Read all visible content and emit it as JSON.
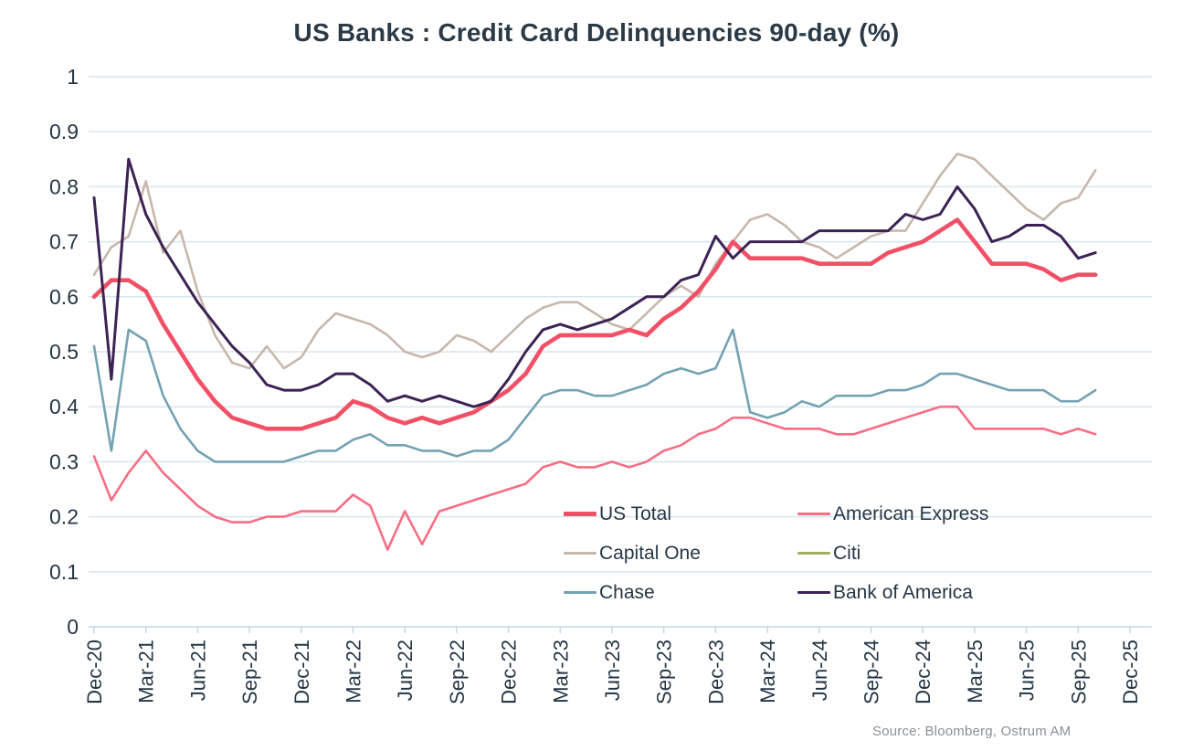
{
  "title": "US Banks : Credit Card Delinquencies 90-day (%)",
  "source": "Source: Bloomberg, Ostrum AM",
  "colors": {
    "title_text": "#2b3a47",
    "axis_text": "#263645",
    "gridline": "#d8e6ee",
    "axis_line": "#c2d8e4",
    "source_text": "#8b9095",
    "background": "#ffffff"
  },
  "chart_data": {
    "type": "line",
    "title": "US Banks : Credit Card Delinquencies 90-day (%)",
    "xlabel": "",
    "ylabel": "",
    "ylim": [
      0,
      1
    ],
    "grid": "horizontal",
    "legend_position": "inside bottom-right, 2 columns x 3 rows",
    "y_tick_labels": [
      "0",
      "0.1",
      "0.2",
      "0.3",
      "0.4",
      "0.5",
      "0.6",
      "0.7",
      "0.8",
      "0.9",
      "1"
    ],
    "x_tick_labels": [
      "Dec-20",
      "Mar-21",
      "Jun-21",
      "Sep-21",
      "Dec-21",
      "Mar-22",
      "Jun-22",
      "Sep-22",
      "Dec-22",
      "Mar-23",
      "Jun-23",
      "Sep-23",
      "Dec-23",
      "Mar-24",
      "Jun-24",
      "Sep-24",
      "Dec-24",
      "Mar-25",
      "Jun-25",
      "Sep-25",
      "Dec-25"
    ],
    "months": [
      "Dec-20",
      "Jan-21",
      "Feb-21",
      "Mar-21",
      "Apr-21",
      "May-21",
      "Jun-21",
      "Jul-21",
      "Aug-21",
      "Sep-21",
      "Oct-21",
      "Nov-21",
      "Dec-21",
      "Jan-22",
      "Feb-22",
      "Mar-22",
      "Apr-22",
      "May-22",
      "Jun-22",
      "Jul-22",
      "Aug-22",
      "Sep-22",
      "Oct-22",
      "Nov-22",
      "Dec-22",
      "Jan-23",
      "Feb-23",
      "Mar-23",
      "Apr-23",
      "May-23",
      "Jun-23",
      "Jul-23",
      "Aug-23",
      "Sep-23",
      "Oct-23",
      "Nov-23",
      "Dec-23",
      "Jan-24",
      "Feb-24",
      "Mar-24",
      "Apr-24",
      "May-24",
      "Jun-24",
      "Jul-24",
      "Aug-24",
      "Sep-24",
      "Oct-24",
      "Nov-24",
      "Dec-24",
      "Jan-25",
      "Feb-25",
      "Mar-25",
      "Apr-25",
      "May-25",
      "Jun-25",
      "Jul-25",
      "Aug-25",
      "Sep-25",
      "Oct-25"
    ],
    "draw_order": [
      "Capital One",
      "Citi",
      "Chase",
      "American Express",
      "US Total",
      "Bank of America"
    ],
    "legend_rows": [
      [
        "US Total",
        "American Express"
      ],
      [
        "Capital One",
        "Citi"
      ],
      [
        "Chase",
        "Bank of America"
      ]
    ],
    "series": [
      {
        "name": "US Total",
        "color": "#f25066",
        "stroke_width": 4.6,
        "values": [
          0.6,
          0.63,
          0.63,
          0.61,
          0.55,
          0.5,
          0.45,
          0.41,
          0.38,
          0.37,
          0.36,
          0.36,
          0.36,
          0.37,
          0.38,
          0.41,
          0.4,
          0.38,
          0.37,
          0.38,
          0.37,
          0.38,
          0.39,
          0.41,
          0.43,
          0.46,
          0.51,
          0.53,
          0.53,
          0.53,
          0.53,
          0.54,
          0.53,
          0.56,
          0.58,
          0.61,
          0.65,
          0.7,
          0.67,
          0.67,
          0.67,
          0.67,
          0.66,
          0.66,
          0.66,
          0.66,
          0.68,
          0.69,
          0.7,
          0.72,
          0.74,
          0.7,
          0.66,
          0.66,
          0.66,
          0.65,
          0.63,
          0.64,
          0.64
        ]
      },
      {
        "name": "American Express",
        "color": "#f76e84",
        "stroke_width": 2.6,
        "values": [
          0.31,
          0.23,
          0.28,
          0.32,
          0.28,
          0.25,
          0.22,
          0.2,
          0.19,
          0.19,
          0.2,
          0.2,
          0.21,
          0.21,
          0.21,
          0.24,
          0.22,
          0.14,
          0.21,
          0.15,
          0.21,
          0.22,
          0.23,
          0.24,
          0.25,
          0.26,
          0.29,
          0.3,
          0.29,
          0.29,
          0.3,
          0.29,
          0.3,
          0.32,
          0.33,
          0.35,
          0.36,
          0.38,
          0.38,
          0.37,
          0.36,
          0.36,
          0.36,
          0.35,
          0.35,
          0.36,
          0.37,
          0.38,
          0.39,
          0.4,
          0.4,
          0.36,
          0.36,
          0.36,
          0.36,
          0.36,
          0.35,
          0.36,
          0.35
        ]
      },
      {
        "name": "Capital One",
        "color": "#c8b7ac",
        "stroke_width": 2.6,
        "values": [
          0.64,
          0.69,
          0.71,
          0.81,
          0.68,
          0.72,
          0.61,
          0.53,
          0.48,
          0.47,
          0.51,
          0.47,
          0.49,
          0.54,
          0.57,
          0.56,
          0.55,
          0.53,
          0.5,
          0.49,
          0.5,
          0.53,
          0.52,
          0.5,
          0.53,
          0.56,
          0.58,
          0.59,
          0.59,
          0.57,
          0.55,
          0.54,
          0.57,
          0.6,
          0.62,
          0.6,
          0.66,
          0.7,
          0.74,
          0.75,
          0.73,
          0.7,
          0.69,
          0.67,
          0.69,
          0.71,
          0.72,
          0.72,
          0.77,
          0.82,
          0.86,
          0.85,
          0.82,
          0.79,
          0.76,
          0.74,
          0.77,
          0.78,
          0.83
        ]
      },
      {
        "name": "Citi",
        "color": "#a4ad5e",
        "stroke_width": 2.6,
        "values": []
      },
      {
        "name": "Chase",
        "color": "#74a2b3",
        "stroke_width": 2.6,
        "values": [
          0.51,
          0.32,
          0.54,
          0.52,
          0.42,
          0.36,
          0.32,
          0.3,
          0.3,
          0.3,
          0.3,
          0.3,
          0.31,
          0.32,
          0.32,
          0.34,
          0.35,
          0.33,
          0.33,
          0.32,
          0.32,
          0.31,
          0.32,
          0.32,
          0.34,
          0.38,
          0.42,
          0.43,
          0.43,
          0.42,
          0.42,
          0.43,
          0.44,
          0.46,
          0.47,
          0.46,
          0.47,
          0.54,
          0.39,
          0.38,
          0.39,
          0.41,
          0.4,
          0.42,
          0.42,
          0.42,
          0.43,
          0.43,
          0.44,
          0.46,
          0.46,
          0.45,
          0.44,
          0.43,
          0.43,
          0.43,
          0.41,
          0.41,
          0.43
        ]
      },
      {
        "name": "Bank of America",
        "color": "#3c2353",
        "stroke_width": 3,
        "values": [
          0.78,
          0.45,
          0.85,
          0.75,
          0.69,
          0.64,
          0.59,
          0.55,
          0.51,
          0.48,
          0.44,
          0.43,
          0.43,
          0.44,
          0.46,
          0.46,
          0.44,
          0.41,
          0.42,
          0.41,
          0.42,
          0.41,
          0.4,
          0.41,
          0.45,
          0.5,
          0.54,
          0.55,
          0.54,
          0.55,
          0.56,
          0.58,
          0.6,
          0.6,
          0.63,
          0.64,
          0.71,
          0.67,
          0.7,
          0.7,
          0.7,
          0.7,
          0.72,
          0.72,
          0.72,
          0.72,
          0.72,
          0.75,
          0.74,
          0.75,
          0.8,
          0.76,
          0.7,
          0.71,
          0.73,
          0.73,
          0.71,
          0.67,
          0.68
        ]
      }
    ]
  }
}
